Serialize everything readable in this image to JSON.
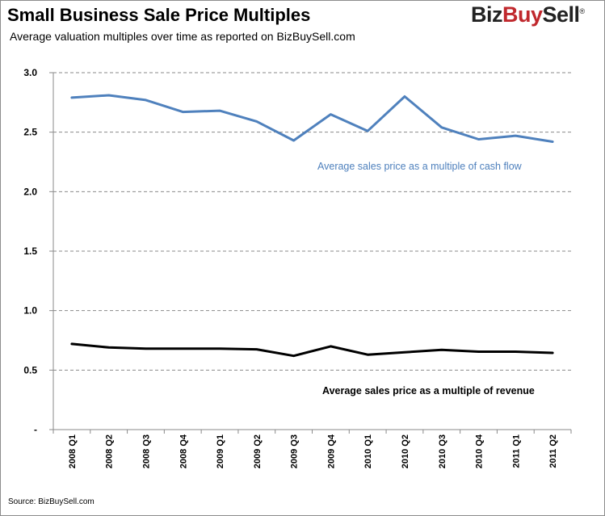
{
  "header": {
    "title": "Small Business Sale Price Multiples",
    "subtitle": "Average valuation multiples over time as reported  on BizBuySell.com",
    "logo_part1": "Biz",
    "logo_part2": "Buy",
    "logo_part3": "Sell",
    "logo_reg": "®"
  },
  "footer": {
    "source": "Source: BizBuySell.com"
  },
  "chart_data": {
    "type": "line",
    "title": "Small Business Sale Price Multiples",
    "subtitle": "Average valuation multiples over time as reported  on BizBuySell.com",
    "categories": [
      "2008 Q1",
      "2008 Q2",
      "2008 Q3",
      "2008 Q4",
      "2009 Q1",
      "2009 Q2",
      "2009 Q3",
      "2009 Q4",
      "2010 Q1",
      "2010 Q2",
      "2010 Q3",
      "2010 Q4",
      "2011 Q1",
      "2011 Q2"
    ],
    "y_ticks": [
      "-",
      "0.5",
      "1.0",
      "1.5",
      "2.0",
      "2.5",
      "3.0"
    ],
    "ylim": [
      0,
      3.0
    ],
    "grid": true,
    "series": [
      {
        "name": "Average sales price as a multiple of cash flow",
        "color": "#4f81bd",
        "values": [
          2.79,
          2.81,
          2.77,
          2.67,
          2.68,
          2.59,
          2.43,
          2.65,
          2.51,
          2.8,
          2.54,
          2.44,
          2.47,
          2.42
        ]
      },
      {
        "name": "Average sales price as a multiple of revenue",
        "color": "#000000",
        "values": [
          0.72,
          0.69,
          0.68,
          0.68,
          0.68,
          0.675,
          0.62,
          0.7,
          0.63,
          0.65,
          0.67,
          0.655,
          0.655,
          0.645
        ]
      }
    ]
  }
}
